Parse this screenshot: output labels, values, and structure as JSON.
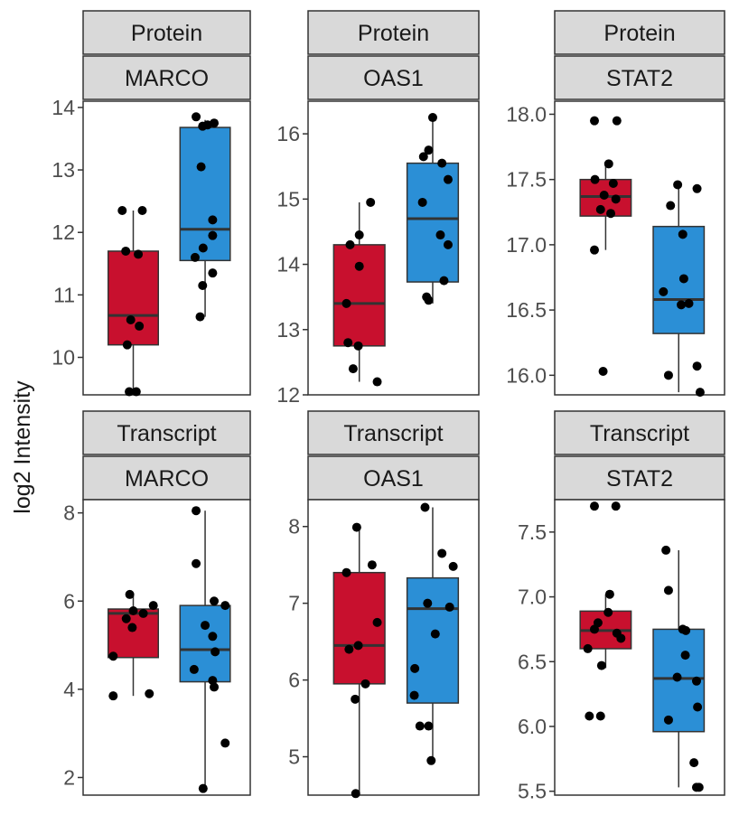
{
  "figure": {
    "ylabel": "log2 Intensity",
    "group_colors": [
      "#c8102e",
      "#2b8fd6"
    ],
    "point_color": "#000000",
    "strip_fill": "#d9d9d9"
  },
  "chart_data": [
    {
      "type": "boxplot",
      "row": "Protein",
      "col": "MARCO",
      "ylim": [
        9.4,
        14.1
      ],
      "yticks": [
        "10",
        "11",
        "12",
        "13",
        "14"
      ],
      "boxes": [
        {
          "q1": 10.2,
          "median": 10.67,
          "q3": 11.7,
          "whisker_low": 9.45,
          "whisker_high": 12.35
        },
        {
          "q1": 11.55,
          "median": 12.05,
          "q3": 13.68,
          "whisker_low": 10.65,
          "whisker_high": 13.8
        }
      ],
      "points": [
        [
          [
            9.45,
            10.2,
            10.5,
            10.6,
            11.65,
            11.7,
            12.35,
            12.35,
            9.45
          ],
          [
            0.92,
            0.88,
            1.12,
            0.95,
            1.1,
            0.85,
            1.18,
            0.78,
            1.06
          ]
        ],
        [
          [
            13.85,
            13.75,
            13.72,
            13.7,
            13.05,
            12.2,
            11.95,
            11.75,
            11.6,
            11.35,
            11.15,
            10.65
          ],
          [
            0.82,
            1.18,
            1.05,
            0.95,
            0.92,
            1.15,
            1.15,
            0.96,
            0.8,
            1.15,
            0.95,
            0.9
          ]
        ]
      ]
    },
    {
      "type": "boxplot",
      "row": "Protein",
      "col": "OAS1",
      "ylim": [
        12.0,
        16.5
      ],
      "yticks": [
        "12",
        "13",
        "14",
        "15",
        "16"
      ],
      "boxes": [
        {
          "q1": 12.75,
          "median": 13.4,
          "q3": 14.3,
          "whisker_low": 12.2,
          "whisker_high": 14.95
        },
        {
          "q1": 13.73,
          "median": 14.7,
          "q3": 15.55,
          "whisker_low": 13.4,
          "whisker_high": 16.25
        }
      ],
      "points": [
        [
          [
            14.95,
            14.45,
            14.3,
            13.97,
            13.4,
            12.8,
            12.75,
            12.4,
            12.2
          ],
          [
            1.22,
            1.0,
            0.82,
            1.0,
            0.75,
            0.78,
            0.98,
            0.88,
            1.35
          ]
        ],
        [
          [
            16.25,
            15.75,
            15.65,
            15.55,
            15.3,
            14.95,
            14.45,
            14.3,
            13.75,
            13.5,
            13.45
          ],
          [
            1.0,
            0.92,
            0.82,
            1.18,
            1.3,
            0.8,
            1.15,
            1.3,
            1.22,
            0.88,
            0.92
          ]
        ]
      ]
    },
    {
      "type": "boxplot",
      "row": "Protein",
      "col": "STAT2",
      "ylim": [
        15.85,
        18.1
      ],
      "yticks": [
        "16.0",
        "16.5",
        "17.0",
        "17.5",
        "18.0"
      ],
      "boxes": [
        {
          "q1": 17.22,
          "median": 17.37,
          "q3": 17.5,
          "whisker_low": 16.96,
          "whisker_high": 17.6
        },
        {
          "q1": 16.32,
          "median": 16.58,
          "q3": 17.14,
          "whisker_low": 15.87,
          "whisker_high": 17.46
        }
      ],
      "points": [
        [
          [
            17.95,
            17.95,
            17.62,
            17.5,
            17.47,
            17.38,
            17.35,
            17.27,
            17.24,
            16.96,
            16.03
          ],
          [
            0.78,
            1.22,
            1.06,
            0.79,
            1.15,
            0.97,
            1.2,
            0.9,
            1.1,
            0.78,
            0.95
          ]
        ],
        [
          [
            17.46,
            17.43,
            17.3,
            17.08,
            16.74,
            16.64,
            16.55,
            16.54,
            16.07,
            16.0,
            15.87
          ],
          [
            0.98,
            1.36,
            0.84,
            1.08,
            1.1,
            0.7,
            1.2,
            1.05,
            1.36,
            0.8,
            1.42
          ]
        ]
      ]
    },
    {
      "type": "boxplot",
      "row": "Transcript",
      "col": "MARCO",
      "ylim": [
        1.6,
        8.3
      ],
      "yticks": [
        "2",
        "4",
        "6",
        "8"
      ],
      "boxes": [
        {
          "q1": 4.72,
          "median": 5.72,
          "q3": 5.82,
          "whisker_low": 3.85,
          "whisker_high": 6.12
        },
        {
          "q1": 4.17,
          "median": 4.9,
          "q3": 5.9,
          "whisker_low": 1.75,
          "whisker_high": 8.05
        }
      ],
      "points": [
        [
          [
            6.15,
            5.9,
            5.78,
            5.72,
            5.6,
            5.4,
            4.75,
            3.9,
            3.85
          ],
          [
            0.93,
            1.4,
            1.0,
            1.2,
            0.86,
            0.98,
            0.6,
            1.32,
            0.6
          ]
        ],
        [
          [
            8.05,
            6.85,
            6.0,
            5.9,
            5.45,
            5.2,
            4.85,
            4.45,
            4.2,
            4.05,
            2.78,
            1.75
          ],
          [
            0.82,
            0.82,
            1.18,
            1.4,
            1.0,
            1.15,
            1.2,
            0.78,
            1.15,
            1.18,
            1.4,
            0.96
          ]
        ]
      ]
    },
    {
      "type": "boxplot",
      "row": "Transcript",
      "col": "OAS1",
      "ylim": [
        4.5,
        8.35
      ],
      "yticks": [
        "5",
        "6",
        "7",
        "8"
      ],
      "boxes": [
        {
          "q1": 5.95,
          "median": 6.45,
          "q3": 7.4,
          "whisker_low": 4.52,
          "whisker_high": 8.0
        },
        {
          "q1": 5.7,
          "median": 6.93,
          "q3": 7.33,
          "whisker_low": 4.95,
          "whisker_high": 8.25
        }
      ],
      "points": [
        [
          [
            7.99,
            7.5,
            7.4,
            6.75,
            6.45,
            6.4,
            5.95,
            5.75,
            4.52
          ],
          [
            0.95,
            1.25,
            0.75,
            1.35,
            0.98,
            0.8,
            1.12,
            0.92,
            0.93
          ]
        ],
        [
          [
            8.25,
            7.65,
            7.48,
            7.0,
            6.95,
            6.6,
            6.15,
            5.8,
            5.4,
            5.4,
            4.95
          ],
          [
            0.85,
            1.18,
            1.4,
            0.9,
            1.33,
            1.05,
            0.65,
            0.64,
            0.75,
            0.92,
            0.97
          ]
        ]
      ]
    },
    {
      "type": "boxplot",
      "row": "Transcript",
      "col": "STAT2",
      "ylim": [
        5.47,
        7.75
      ],
      "yticks": [
        "5.5",
        "6.0",
        "6.5",
        "7.0",
        "7.5"
      ],
      "boxes": [
        {
          "q1": 6.6,
          "median": 6.74,
          "q3": 6.89,
          "whisker_low": 6.45,
          "whisker_high": 7.02
        },
        {
          "q1": 5.96,
          "median": 6.37,
          "q3": 6.75,
          "whisker_low": 5.53,
          "whisker_high": 7.36
        }
      ],
      "points": [
        [
          [
            7.7,
            7.7,
            7.02,
            6.88,
            6.8,
            6.75,
            6.72,
            6.68,
            6.6,
            6.47,
            6.08,
            6.08
          ],
          [
            0.78,
            1.2,
            1.08,
            1.05,
            0.85,
            0.78,
            1.22,
            1.3,
            0.65,
            0.92,
            0.68,
            0.9
          ]
        ],
        [
          [
            7.36,
            7.05,
            6.75,
            6.74,
            6.55,
            6.38,
            6.35,
            6.15,
            6.05,
            5.72,
            5.53,
            5.53
          ],
          [
            0.75,
            0.8,
            1.08,
            1.14,
            1.13,
            0.97,
            1.35,
            1.37,
            0.8,
            1.3,
            1.35,
            1.4
          ]
        ]
      ]
    }
  ]
}
